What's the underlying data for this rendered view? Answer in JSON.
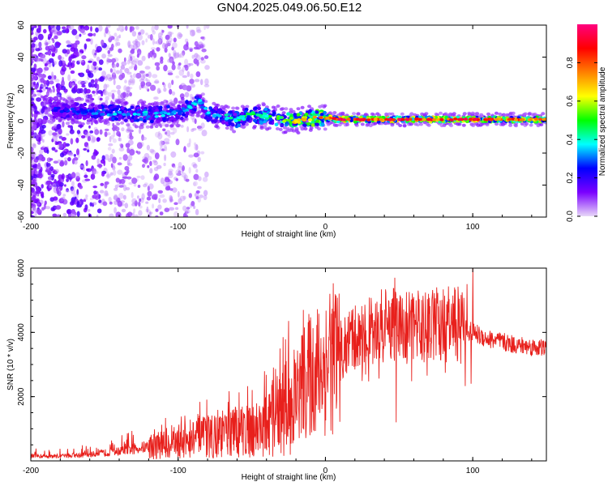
{
  "figure_title": "GN04.2025.049.06.50.E12",
  "chart_data": [
    {
      "type": "heatmap",
      "name": "spectrogram",
      "xlabel": "Height of straight line (km)",
      "ylabel": "Frequency (Hz)",
      "xlim": [
        -200,
        150
      ],
      "ylim": [
        -60,
        60
      ],
      "xticks": [
        -200,
        -100,
        0,
        100
      ],
      "yticks": [
        -60,
        -40,
        -20,
        0,
        20,
        40,
        60
      ],
      "colorbar": {
        "label": "Normalized spectral amplitude",
        "range": [
          0,
          1
        ],
        "ticks": [
          0.0,
          0.2,
          0.4,
          0.6,
          0.8
        ],
        "tick_labels": [
          "0.0",
          "0.2",
          "0.4",
          "0.6",
          "0.8"
        ],
        "colormap": [
          "#e8d8f8",
          "#7a00ff",
          "#0000ff",
          "#00ffff",
          "#00ff00",
          "#ffff00",
          "#ff8000",
          "#ff0000",
          "#ff007f"
        ]
      },
      "ridge": {
        "x": [
          -185,
          -160,
          -140,
          -120,
          -100,
          -85,
          -80,
          -70,
          -60,
          -50,
          -40,
          -30,
          -20,
          -10,
          -5,
          0,
          10,
          20,
          40,
          60,
          80,
          100,
          120,
          150
        ],
        "freq": [
          7,
          6,
          5,
          4,
          5,
          12,
          5,
          3,
          1,
          4,
          3,
          1,
          0,
          2,
          2,
          2,
          1,
          1,
          1,
          1,
          1,
          1,
          1,
          1
        ],
        "amplitude": [
          0.25,
          0.3,
          0.4,
          0.4,
          0.35,
          0.4,
          0.35,
          0.4,
          0.45,
          0.5,
          0.45,
          0.55,
          0.7,
          0.75,
          0.8,
          0.85,
          0.95,
          0.9,
          0.95,
          0.95,
          0.9,
          0.95,
          0.9,
          0.8
        ]
      }
    },
    {
      "type": "line",
      "name": "snr",
      "xlabel": "Height of straight line (km)",
      "ylabel": "SNR (10 * v/v)",
      "xlim": [
        -200,
        150
      ],
      "ylim": [
        0,
        6000
      ],
      "xticks": [
        -200,
        -100,
        0,
        100
      ],
      "yticks": [
        2000,
        4000,
        6000
      ],
      "color": "#e8201c",
      "envelope_x": [
        -200,
        -180,
        -160,
        -140,
        -120,
        -100,
        -80,
        -60,
        -40,
        -30,
        -20,
        -15,
        -10,
        0,
        10,
        20,
        30,
        40,
        50,
        60,
        70,
        80,
        90,
        100,
        110,
        120,
        130,
        140,
        150
      ],
      "envelope_y": [
        150,
        150,
        200,
        300,
        450,
        600,
        750,
        900,
        1100,
        1500,
        2000,
        2400,
        2700,
        3000,
        3400,
        3800,
        4100,
        4200,
        4200,
        4200,
        4200,
        4250,
        4250,
        4000,
        3800,
        3700,
        3600,
        3550,
        3500
      ],
      "spikes": [
        {
          "x": -15,
          "y": 4700
        },
        {
          "x": -12,
          "y": 3200
        },
        {
          "x": 3,
          "y": 5200
        },
        {
          "x": 47,
          "y": 5700
        },
        {
          "x": 48,
          "y": 1200
        },
        {
          "x": 60,
          "y": 5100
        },
        {
          "x": 78,
          "y": 5000
        },
        {
          "x": 96,
          "y": 5500
        },
        {
          "x": 100,
          "y": 6000
        },
        {
          "x": 99,
          "y": 2400
        }
      ]
    }
  ]
}
